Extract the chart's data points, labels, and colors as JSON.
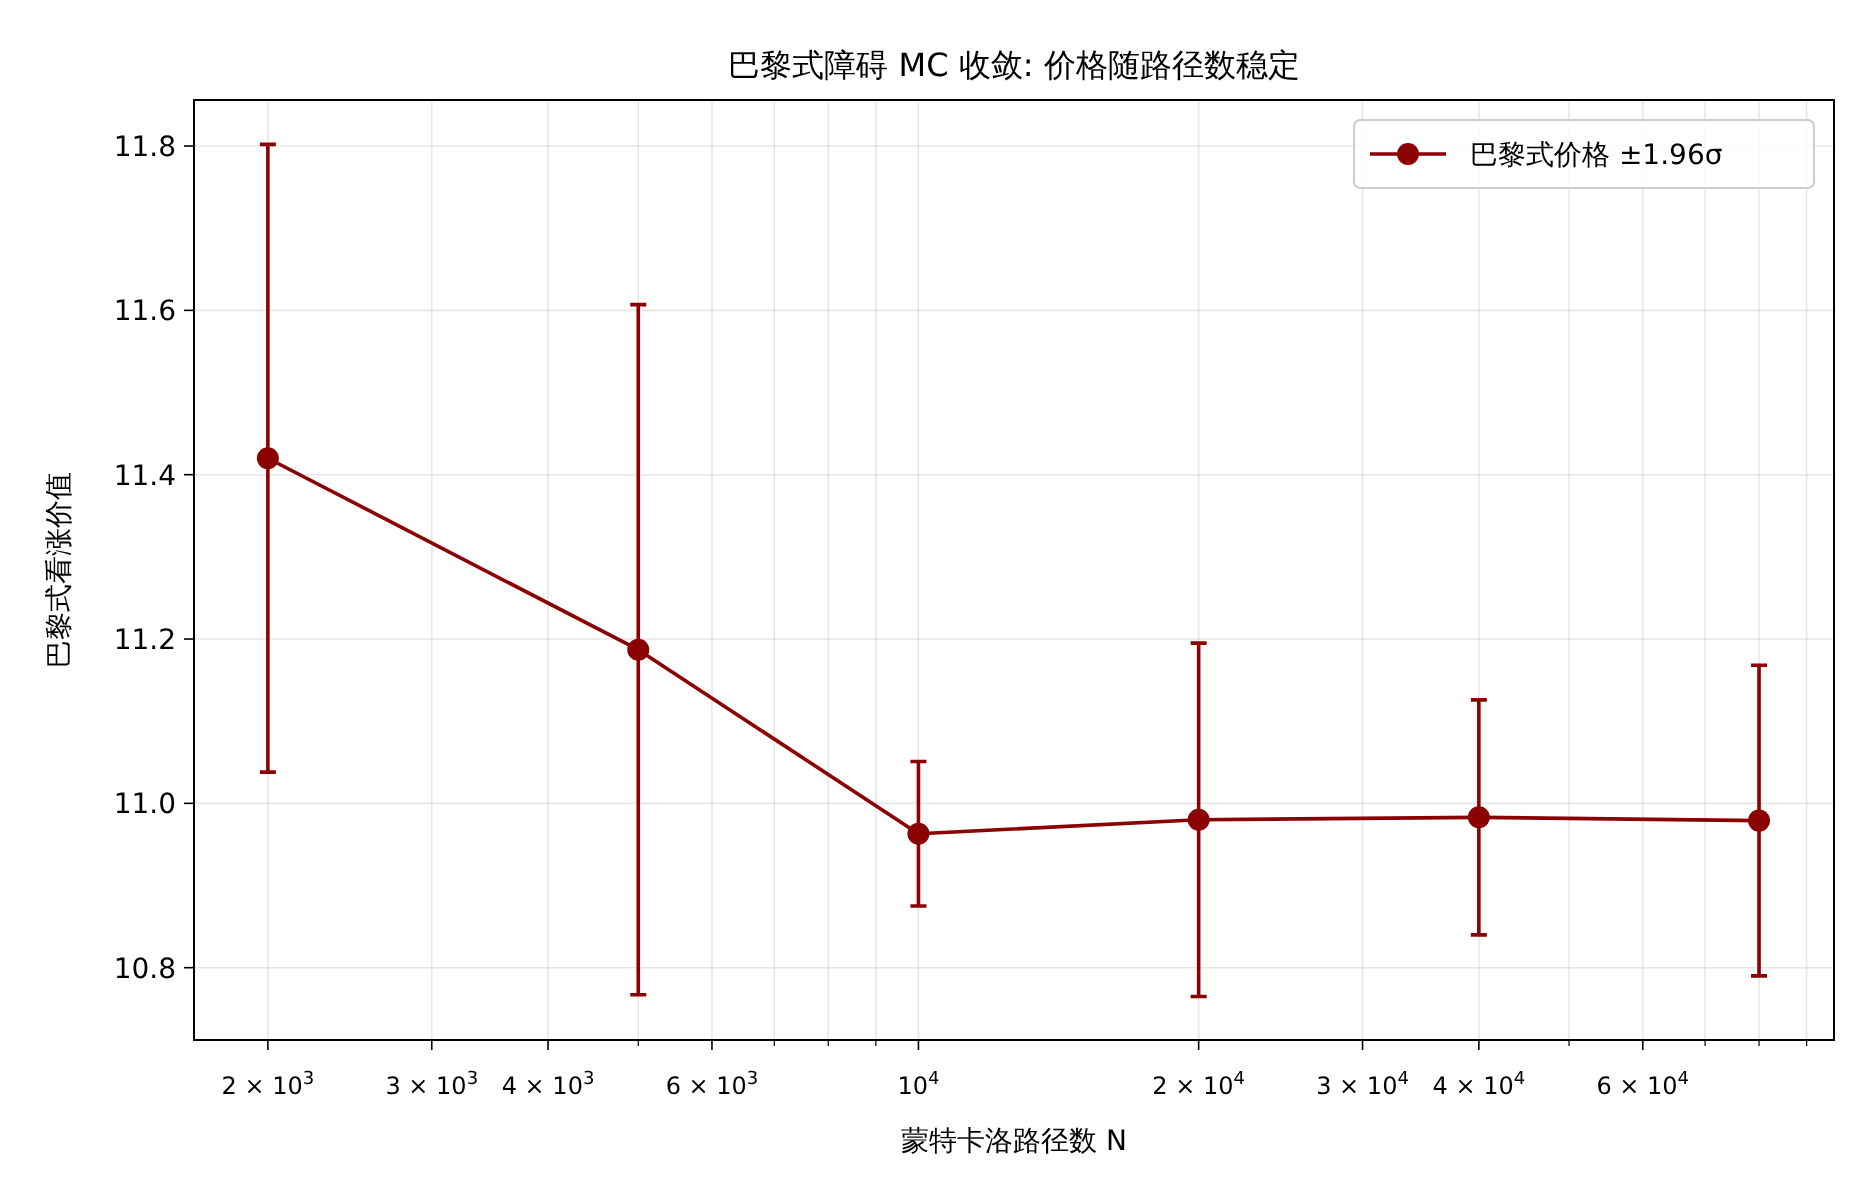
{
  "chart_data": {
    "type": "line",
    "title": "巴黎式障碍 MC 收敛: 价格随路径数稳定",
    "xlabel": "蒙特卡洛路径数 N",
    "ylabel": "巴黎式看涨价值",
    "log": "x",
    "grid": true,
    "legend": "top right",
    "marker": "circle",
    "line_style": "solid",
    "x": [
      2000,
      5000,
      10000,
      20000,
      40000,
      80000
    ],
    "series": [
      {
        "name": "巴黎式价格 ±1.96σ",
        "color": "#8b0000",
        "values": [
          11.42,
          11.187,
          10.963,
          10.98,
          10.983,
          10.979
        ],
        "errors": [
          0.382,
          0.42,
          0.088,
          0.215,
          0.143,
          0.189
        ]
      }
    ],
    "xlim": [
      1666,
      96300
    ],
    "xticks": [
      {
        "value": 2000,
        "label": "2 × 10$^{3}$"
      },
      {
        "value": 3000,
        "label": "3 × 10$^{3}$"
      },
      {
        "value": 4000,
        "label": "4 × 10$^{3}$"
      },
      {
        "value": 5000,
        "label": null
      },
      {
        "value": 6000,
        "label": "6 × 10$^{3}$"
      },
      {
        "value": 7000,
        "label": null
      },
      {
        "value": 8000,
        "label": null
      },
      {
        "value": 9000,
        "label": null
      },
      {
        "value": 10000,
        "label": "10$^{4}$"
      },
      {
        "value": 20000,
        "label": "2 × 10$^{4}$"
      },
      {
        "value": 30000,
        "label": "3 × 10$^{4}$"
      },
      {
        "value": 40000,
        "label": "4 × 10$^{4}$"
      },
      {
        "value": 50000,
        "label": null
      },
      {
        "value": 60000,
        "label": "6 × 10$^{4}$"
      },
      {
        "value": 70000,
        "label": null
      },
      {
        "value": 80000,
        "label": null
      },
      {
        "value": 90000,
        "label": null
      }
    ],
    "ylim": [
      10.712,
      11.856
    ],
    "yticks": [
      10.8,
      {
        "value": 11,
        "label": "11.0"
      },
      11.2,
      11.4,
      11.6,
      11.8
    ]
  }
}
